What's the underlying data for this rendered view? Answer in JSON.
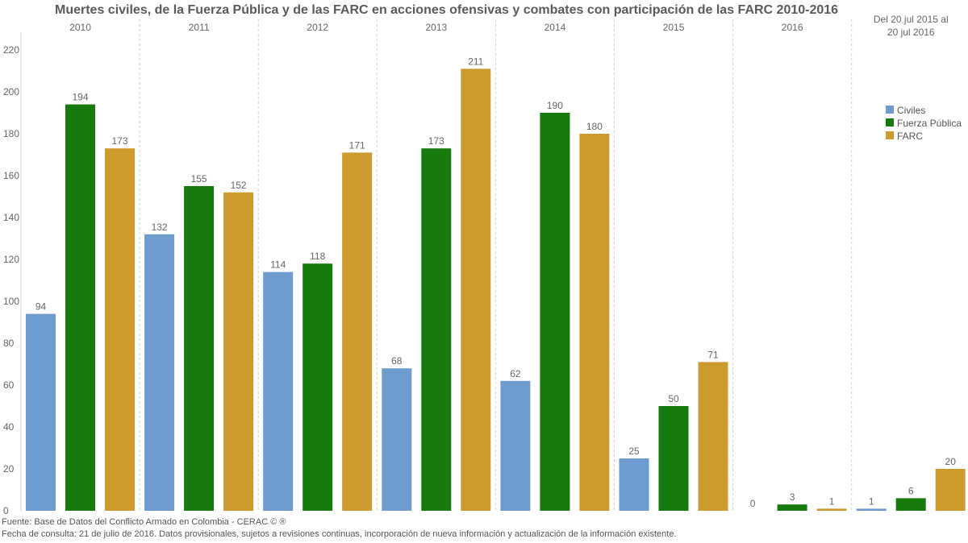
{
  "chart_data": {
    "type": "bar",
    "title": "Muertes civiles, de la Fuerza Pública y de las FARC en acciones ofensivas y combates con participación de las FARC 2010-2016",
    "categories": [
      "2010",
      "2011",
      "2012",
      "2013",
      "2014",
      "2015",
      "2016",
      "Del 20 jul 2015 al 20 jul 2016"
    ],
    "series": [
      {
        "name": "Civiles",
        "color": "#6f9ccf",
        "values": [
          94,
          132,
          114,
          68,
          62,
          25,
          0,
          1
        ]
      },
      {
        "name": "Fuerza Pública",
        "color": "#177a0c",
        "values": [
          194,
          155,
          118,
          173,
          190,
          50,
          3,
          6
        ]
      },
      {
        "name": "FARC",
        "color": "#cd9a2e",
        "values": [
          173,
          152,
          171,
          211,
          180,
          71,
          1,
          20
        ]
      }
    ],
    "yticks": [
      0,
      20,
      40,
      60,
      80,
      100,
      120,
      140,
      160,
      180,
      200,
      220
    ],
    "ylim": [
      0,
      225
    ],
    "legend_position": "top-right",
    "grid": false,
    "xlabel": "",
    "ylabel": ""
  },
  "notes": {
    "source": "Fuente: Base de Datos del Conflicto Armado en Colombia - CERAC © ®",
    "query": "Fecha de consulta: 21 de julio de 2016. Datos provisionales, sujetos a revisiones continuas, incorporación de nueva información y actualización de la información existente."
  }
}
